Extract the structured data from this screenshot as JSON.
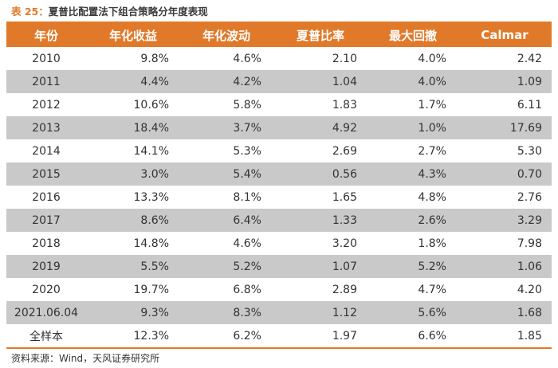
{
  "caption": {
    "label": "表 25：",
    "title": "夏普比配置法下组合策略分年度表现"
  },
  "colors": {
    "header_bg": "#e07a2a",
    "stripe_bg": "#c9c9c9",
    "row_bg": "#ffffff",
    "caption_label": "#e07a2a"
  },
  "table": {
    "headers": [
      "年份",
      "年化收益",
      "年化波动",
      "夏普比率",
      "最大回撤",
      "Calmar"
    ],
    "rows": [
      [
        "2010",
        "9.8%",
        "4.6%",
        "2.10",
        "4.0%",
        "2.42"
      ],
      [
        "2011",
        "4.4%",
        "4.2%",
        "1.04",
        "4.0%",
        "1.09"
      ],
      [
        "2012",
        "10.6%",
        "5.8%",
        "1.83",
        "1.7%",
        "6.11"
      ],
      [
        "2013",
        "18.4%",
        "3.7%",
        "4.92",
        "1.0%",
        "17.69"
      ],
      [
        "2014",
        "14.1%",
        "5.3%",
        "2.69",
        "2.7%",
        "5.30"
      ],
      [
        "2015",
        "3.0%",
        "5.4%",
        "0.56",
        "4.3%",
        "0.70"
      ],
      [
        "2016",
        "13.3%",
        "8.1%",
        "1.65",
        "4.8%",
        "2.76"
      ],
      [
        "2017",
        "8.6%",
        "6.4%",
        "1.33",
        "2.6%",
        "3.29"
      ],
      [
        "2018",
        "14.8%",
        "4.6%",
        "3.20",
        "1.8%",
        "7.98"
      ],
      [
        "2019",
        "5.5%",
        "5.2%",
        "1.07",
        "5.2%",
        "1.06"
      ],
      [
        "2020",
        "19.7%",
        "6.8%",
        "2.89",
        "4.7%",
        "4.20"
      ],
      [
        "2021.06.04",
        "9.3%",
        "8.3%",
        "1.12",
        "5.6%",
        "1.68"
      ],
      [
        "全样本",
        "12.3%",
        "6.2%",
        "1.97",
        "6.6%",
        "1.85"
      ]
    ]
  },
  "source": "资料来源：Wind，天风证券研究所"
}
